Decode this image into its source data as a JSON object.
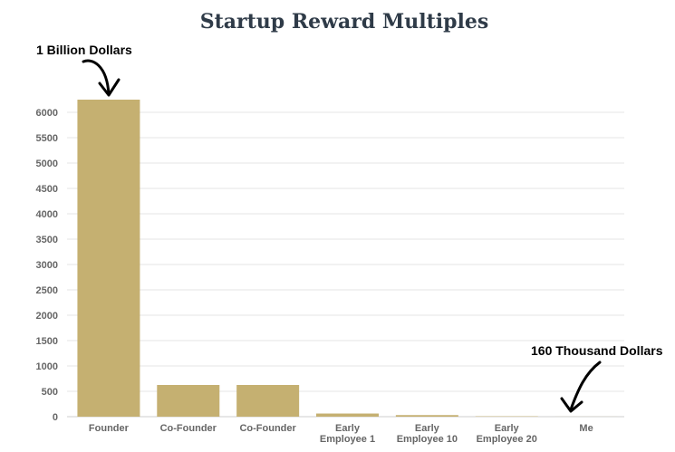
{
  "chart_data": {
    "type": "bar",
    "title": "Startup Reward Multiples",
    "xlabel": "",
    "ylabel": "",
    "categories": [
      "Founder",
      "Co-Founder",
      "Co-Founder",
      "Early Employee 1",
      "Early Employee 10",
      "Early Employee 20",
      "Me"
    ],
    "category_lines": [
      [
        "Founder"
      ],
      [
        "Co-Founder"
      ],
      [
        "Co-Founder"
      ],
      [
        "Early",
        "Employee 1"
      ],
      [
        "Early",
        "Employee 10"
      ],
      [
        "Early",
        "Employee 20"
      ],
      [
        "Me"
      ]
    ],
    "values": [
      6250,
      625,
      625,
      62,
      31,
      8,
      1
    ],
    "ylim": [
      0,
      6000
    ],
    "yticks": [
      0,
      500,
      1000,
      1500,
      2000,
      2500,
      3000,
      3500,
      4000,
      4500,
      5000,
      5500,
      6000
    ],
    "grid": true,
    "bar_color": "#c5b071",
    "annotations": [
      {
        "text": "1 Billion Dollars",
        "target_category": "Founder"
      },
      {
        "text": "160 Thousand Dollars",
        "target_category": "Me"
      }
    ]
  }
}
